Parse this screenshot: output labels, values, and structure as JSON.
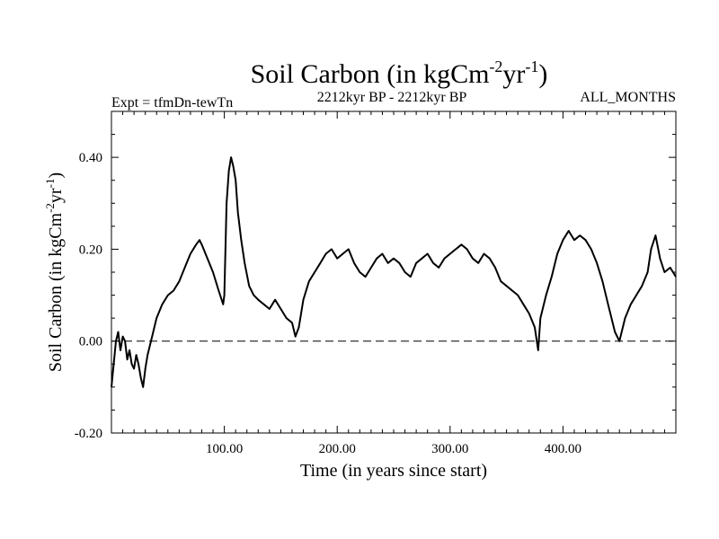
{
  "chart_data": {
    "type": "line",
    "title": {
      "main": "Soil Carbon (in kgCm",
      "sup1": "-2",
      "mid": "yr",
      "sup2": "-1",
      "close": ")"
    },
    "subtitle_left": "Expt = tfmDn-tewTn",
    "subtitle_center": "2212kyr BP - 2212kyr BP",
    "subtitle_right": "ALL_MONTHS",
    "xlabel": "Time (in years since start)",
    "ylabel": {
      "main": "Soil Carbon (in kgCm",
      "sup1": "-2",
      "mid": "yr",
      "sup2": "-1",
      "close": ")"
    },
    "xlim": [
      0,
      500
    ],
    "ylim": [
      -0.2,
      0.5
    ],
    "x_ticks": [
      100,
      200,
      300,
      400
    ],
    "x_tick_labels": [
      "100.00",
      "200.00",
      "300.00",
      "400.00"
    ],
    "y_ticks": [
      -0.2,
      0.0,
      0.2,
      0.4
    ],
    "y_tick_labels": [
      "-0.20",
      "0.00",
      "0.20",
      "0.40"
    ],
    "reference_line": {
      "y": 0.0,
      "style": "dashed"
    },
    "series": [
      {
        "name": "Soil Carbon",
        "x": [
          0,
          2,
          4,
          6,
          8,
          10,
          12,
          14,
          16,
          18,
          20,
          22,
          24,
          26,
          28,
          30,
          32,
          35,
          40,
          45,
          50,
          55,
          60,
          65,
          70,
          75,
          78,
          80,
          85,
          90,
          95,
          99,
          100,
          102,
          104,
          106,
          108,
          110,
          112,
          115,
          118,
          122,
          126,
          130,
          135,
          140,
          145,
          150,
          155,
          160,
          163,
          166,
          170,
          175,
          180,
          185,
          190,
          195,
          200,
          205,
          210,
          215,
          220,
          225,
          230,
          235,
          240,
          245,
          250,
          255,
          260,
          265,
          270,
          275,
          280,
          285,
          290,
          295,
          300,
          305,
          310,
          315,
          320,
          325,
          330,
          335,
          340,
          345,
          350,
          355,
          360,
          365,
          370,
          375,
          378,
          380,
          385,
          390,
          395,
          400,
          405,
          410,
          415,
          420,
          425,
          430,
          435,
          440,
          443,
          446,
          450,
          455,
          460,
          465,
          470,
          475,
          478,
          482,
          486,
          490,
          495,
          500
        ],
        "y": [
          -0.1,
          -0.05,
          0.0,
          0.02,
          -0.02,
          0.01,
          0.0,
          -0.04,
          -0.02,
          -0.05,
          -0.06,
          -0.03,
          -0.05,
          -0.08,
          -0.1,
          -0.06,
          -0.03,
          0.0,
          0.05,
          0.08,
          0.1,
          0.11,
          0.13,
          0.16,
          0.19,
          0.21,
          0.22,
          0.21,
          0.18,
          0.15,
          0.11,
          0.08,
          0.1,
          0.3,
          0.37,
          0.4,
          0.38,
          0.35,
          0.28,
          0.22,
          0.17,
          0.12,
          0.1,
          0.09,
          0.08,
          0.07,
          0.09,
          0.07,
          0.05,
          0.04,
          0.01,
          0.03,
          0.09,
          0.13,
          0.15,
          0.17,
          0.19,
          0.2,
          0.18,
          0.19,
          0.2,
          0.17,
          0.15,
          0.14,
          0.16,
          0.18,
          0.19,
          0.17,
          0.18,
          0.17,
          0.15,
          0.14,
          0.17,
          0.18,
          0.19,
          0.17,
          0.16,
          0.18,
          0.19,
          0.2,
          0.21,
          0.2,
          0.18,
          0.17,
          0.19,
          0.18,
          0.16,
          0.13,
          0.12,
          0.11,
          0.1,
          0.08,
          0.06,
          0.03,
          -0.02,
          0.05,
          0.1,
          0.14,
          0.19,
          0.22,
          0.24,
          0.22,
          0.23,
          0.22,
          0.2,
          0.17,
          0.13,
          0.08,
          0.05,
          0.02,
          0.0,
          0.05,
          0.08,
          0.1,
          0.12,
          0.15,
          0.2,
          0.23,
          0.18,
          0.15,
          0.16,
          0.14
        ]
      }
    ]
  }
}
